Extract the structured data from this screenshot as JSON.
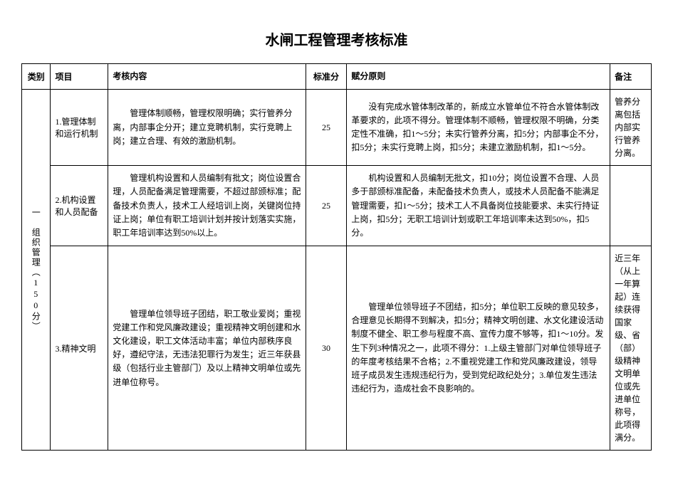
{
  "title": "水闸工程管理考核标准",
  "headers": {
    "category": "类别",
    "item": "项目",
    "content": "考核内容",
    "score": "标准分",
    "principle": "赋分原则",
    "remark": "备注"
  },
  "category": {
    "label": "一　组织管理（150分）"
  },
  "rows": [
    {
      "item": "1.管理体制和运行机制",
      "content": "管理体制顺畅，管理权限明确；实行管养分离，内部事企分开；建立竞聘机制，实行竞聘上岗；建立合理、有效的激励机制。",
      "score": "25",
      "principle": "没有完成水管体制改革的，新成立水管单位不符合水管体制改革要求的，此项不得分。管理体制不顺畅，管理权限不明确，分类定性不准确，扣1～5分；未实行管养分离，扣5分；内部事企不分，扣5分；未实行竞聘上岗，扣5分；未建立激励机制，扣1～5分。",
      "remark": "管养分离包括内部实行管养分离。"
    },
    {
      "item": "2.机构设置和人员配备",
      "content": "管理机构设置和人员编制有批文；岗位设置合理，人员配备满足管理需要，不超过部颁标准；配备技术负责人，技术工人经培训上岗，关键岗位持证上岗；单位有职工培训计划并按计划落实实施，职工年培训率达到50%以上。",
      "score": "25",
      "principle": "机构设置和人员编制无批文，扣10分；岗位设置不合理、人员多于部颁标准配备，未配备技术负责人，或技术人员配备不能满足管理需要，扣1～5分；技术工人不具备岗位技能要求、未实行持证上岗，扣5分；无职工培训计划或职工年培训率未达到50%，扣5分。",
      "remark": ""
    },
    {
      "item": "3.精神文明",
      "content": "管理单位领导班子团结，职工敬业爱岗；重视党建工作和党风廉政建设；重视精神文明创建和水文化建设，职工文体活动丰富；单位内部秩序良好，遵纪守法，无违法犯罪行为发生；近三年获县级（包括行业主管部门）及以上精神文明单位或先进单位称号。",
      "score": "30",
      "principle": "管理单位领导班子不团结，扣5分；单位职工反映的意见较多，合理意见长期得不到解决，扣5分；精神文明创建、水文化建设活动制度不健全、职工参与程度不高、宣传力度不够等，扣1～10分。发生下列3种情况之一，此项不得分：1.上级主管部门对单位领导班子的年度考核结果不合格；2.不重视党建工作和党风廉政建设，领导班子成员发生违规违纪行为，受到党纪政纪处分；3.单位发生违法违纪行为，造成社会不良影响的。",
      "remark": "近三年（从上一年算起）连续获得国家级、省（部）级精神文明单位或先进单位称号，此项得满分。"
    }
  ]
}
